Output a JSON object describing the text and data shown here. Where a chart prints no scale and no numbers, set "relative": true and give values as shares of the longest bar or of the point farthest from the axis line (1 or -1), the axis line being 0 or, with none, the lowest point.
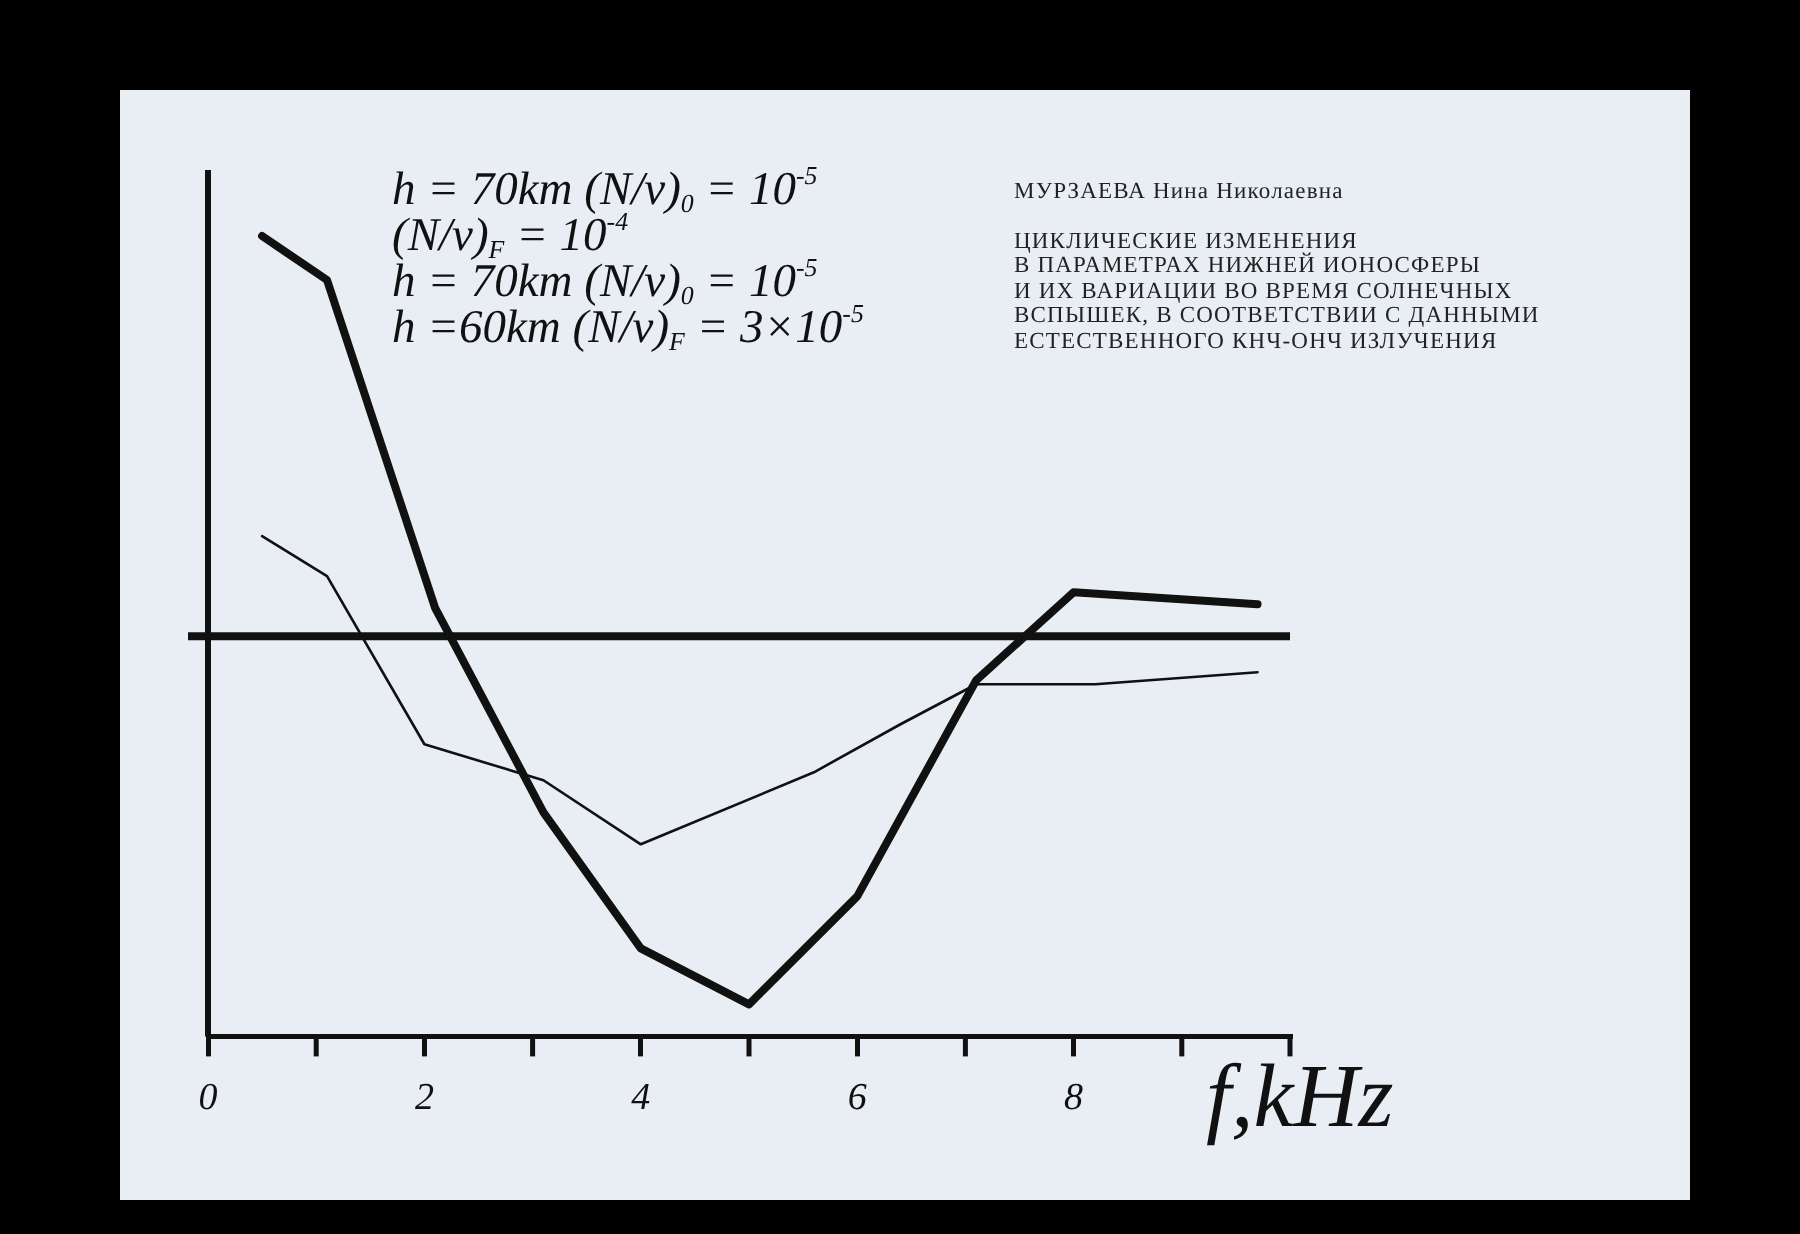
{
  "chart_data": {
    "type": "line",
    "relative": true,
    "tick_labels": "x",
    "subtitle": "МУРЗАЕВА Нина Николаевна",
    "title": "ЦИКЛИЧЕСКИЕ ИЗМЕНЕНИЯ\nВ ПАРАМЕТРАХ НИЖНЕЙ ИОНОСФЕРЫ\nИ ИХ ВАРИАЦИИ ВО ВРЕМЯ СОЛНЕЧНЫХ\nВСПЫШЕК, В СООТВЕТСТВИИ С ДАННЫМИ\nЕСТЕСТВЕННОГО КНЧ-ОНЧ ИЗЛУЧЕНИЯ",
    "annotations": [
      "h = 70km (N/v)$_{0}$ = 10$^{-5}$",
      "(N/v)$_{F}$ = 10$^{-4}$",
      "h = 70km (N/v)$_{0}$ = 10$^{-5}$",
      "h =60km (N/v)$_{F}$ = 3×10$^{-5}$"
    ],
    "xlabel": "f,kHz",
    "xlim": [
      0,
      10
    ],
    "xticks": [
      0,
      2,
      4,
      6,
      8
    ],
    "series": [
      {
        "color": "#111111",
        "x": [
          0.5,
          1.1,
          2.1,
          3.1,
          4,
          5,
          6,
          7.1,
          8,
          9.7
        ],
        "values": [
          1,
          0.89,
          0.07,
          -0.44,
          -0.78,
          -0.92,
          -0.65,
          -0.11,
          0.11,
          0.08
        ]
      },
      {
        "color": "#111111",
        "x": [
          0.5,
          1.1,
          2,
          3.1,
          4,
          5.6,
          6.4,
          7.1,
          8.2,
          9.7
        ],
        "values": [
          0.25,
          0.15,
          -0.27,
          -0.36,
          -0.52,
          -0.34,
          -0.22,
          -0.12,
          -0.12,
          -0.09
        ]
      }
    ],
    "ref_lines": [
      {
        "axis": "y",
        "value": 0,
        "color": "#111111"
      }
    ]
  }
}
